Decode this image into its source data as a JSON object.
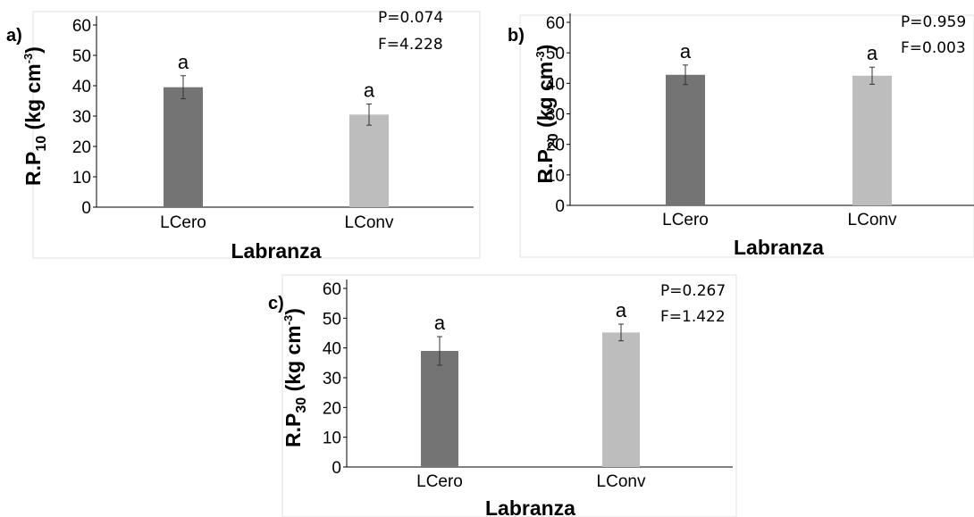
{
  "chart_data": [
    {
      "type": "bar",
      "panel_label": "a)",
      "categories": [
        "LCero",
        "LConv"
      ],
      "values": [
        39.5,
        30.5
      ],
      "errors": [
        3.8,
        3.5
      ],
      "letters": [
        "a",
        "a"
      ],
      "colors": [
        "#747474",
        "#bdbdbd"
      ],
      "ylim": [
        0,
        60
      ],
      "yticks": [
        0,
        10,
        20,
        30,
        40,
        50,
        60
      ],
      "xlabel": "Labranza",
      "ylabel": {
        "main": "R.P",
        "sub": "10",
        "unit": "(kg cm",
        "exp": "-3",
        "close": ")"
      },
      "stats": [
        "P=0.074",
        "F=4.228"
      ]
    },
    {
      "type": "bar",
      "panel_label": "b)",
      "categories": [
        "LCero",
        "LConv"
      ],
      "values": [
        42.8,
        42.5
      ],
      "errors": [
        3.2,
        2.8
      ],
      "letters": [
        "a",
        "a"
      ],
      "colors": [
        "#747474",
        "#bdbdbd"
      ],
      "ylim": [
        0,
        60
      ],
      "yticks": [
        0,
        10,
        20,
        30,
        40,
        50,
        60
      ],
      "xlabel": "Labranza",
      "ylabel": {
        "main": "R.P",
        "sub": "20",
        "unit": "(kg cm",
        "exp": "-3",
        "close": ")"
      },
      "stats": [
        "P=0.959",
        "F=0.003"
      ]
    },
    {
      "type": "bar",
      "panel_label": "c)",
      "categories": [
        "LCero",
        "LConv"
      ],
      "values": [
        39.0,
        45.2
      ],
      "errors": [
        4.8,
        2.8
      ],
      "letters": [
        "a",
        "a"
      ],
      "colors": [
        "#747474",
        "#bdbdbd"
      ],
      "ylim": [
        0,
        60
      ],
      "yticks": [
        0,
        10,
        20,
        30,
        40,
        50,
        60
      ],
      "xlabel": "Labranza",
      "ylabel": {
        "main": "R.P",
        "sub": "30",
        "unit": "(kg cm",
        "exp": "-3",
        "close": ")"
      },
      "stats": [
        "P=0.267",
        "F=1.422"
      ]
    }
  ]
}
